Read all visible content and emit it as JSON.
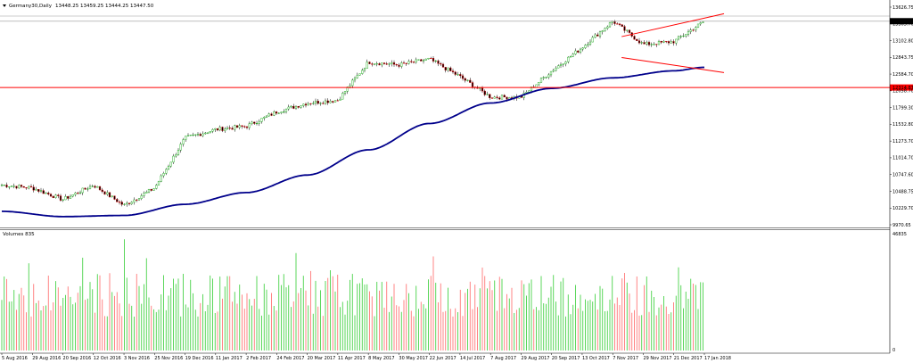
{
  "header": {
    "symbol_text": "Germany30,Daily",
    "ohlc_text": "13448.25 13459.25 13444.25 13447.50",
    "volume_label": "Volumes 835"
  },
  "chart_data": {
    "type": "candlestick",
    "price_axis": {
      "ticks": [
        "13626.75",
        "13365.70",
        "13102.80",
        "12843.75",
        "12584.70",
        "12058.70",
        "11799.30",
        "11532.80",
        "11273.70",
        "11014.70",
        "10747.60",
        "10488.75",
        "10229.70",
        "9970.65"
      ],
      "range": [
        9970.65,
        13626.75
      ]
    },
    "volume_axis": {
      "ticks": [
        "46835",
        "0"
      ],
      "range": [
        0,
        46835
      ]
    },
    "x_labels": [
      "5 Aug 2016",
      "29 Aug 2016",
      "20 Sep 2016",
      "12 Oct 2016",
      "3 Nov 2016",
      "25 Nov 2016",
      "19 Dec 2016",
      "11 Jan 2017",
      "2 Feb 2017",
      "24 Feb 2017",
      "20 Mar 2017",
      "11 Apr 2017",
      "8 May 2017",
      "30 May 2017",
      "22 Jun 2017",
      "14 Jul 2017",
      "7 Aug 2017",
      "29 Aug 2017",
      "20 Sep 2017",
      "13 Oct 2017",
      "7 Nov 2017",
      "29 Nov 2017",
      "21 Dec 2017",
      "17 Jan 2018"
    ],
    "price_anchors": [
      {
        "x": "5 Aug 2016",
        "y": 10650
      },
      {
        "x": "29 Aug 2016",
        "y": 10600
      },
      {
        "x": "20 Sep 2016",
        "y": 10400
      },
      {
        "x": "12 Oct 2016",
        "y": 10650
      },
      {
        "x": "3 Nov 2016",
        "y": 10300
      },
      {
        "x": "25 Nov 2016",
        "y": 10600
      },
      {
        "x": "19 Dec 2016",
        "y": 11450
      },
      {
        "x": "11 Jan 2017",
        "y": 11600
      },
      {
        "x": "2 Feb 2017",
        "y": 11650
      },
      {
        "x": "24 Feb 2017",
        "y": 11900
      },
      {
        "x": "20 Mar 2017",
        "y": 12050
      },
      {
        "x": "11 Apr 2017",
        "y": 12100
      },
      {
        "x": "8 May 2017",
        "y": 12750
      },
      {
        "x": "30 May 2017",
        "y": 12700
      },
      {
        "x": "22 Jun 2017",
        "y": 12800
      },
      {
        "x": "14 Jul 2017",
        "y": 12500
      },
      {
        "x": "7 Aug 2017",
        "y": 12150
      },
      {
        "x": "29 Aug 2017",
        "y": 12150
      },
      {
        "x": "20 Sep 2017",
        "y": 12600
      },
      {
        "x": "13 Oct 2017",
        "y": 13000
      },
      {
        "x": "7 Nov 2017",
        "y": 13450
      },
      {
        "x": "29 Nov 2017",
        "y": 13050
      },
      {
        "x": "21 Dec 2017",
        "y": 13100
      },
      {
        "x": "17 Jan 2018",
        "y": 13447.5
      }
    ],
    "moving_average_anchors": [
      {
        "x": "5 Aug 2016",
        "y": 10200
      },
      {
        "x": "20 Sep 2016",
        "y": 10110
      },
      {
        "x": "3 Nov 2016",
        "y": 10130
      },
      {
        "x": "19 Dec 2016",
        "y": 10320
      },
      {
        "x": "2 Feb 2017",
        "y": 10520
      },
      {
        "x": "20 Mar 2017",
        "y": 10820
      },
      {
        "x": "8 May 2017",
        "y": 11250
      },
      {
        "x": "22 Jun 2017",
        "y": 11700
      },
      {
        "x": "7 Aug 2017",
        "y": 12050
      },
      {
        "x": "20 Sep 2017",
        "y": 12300
      },
      {
        "x": "7 Nov 2017",
        "y": 12480
      },
      {
        "x": "21 Dec 2017",
        "y": 12600
      },
      {
        "x": "17 Jan 2018",
        "y": 12660
      }
    ],
    "horizontal_level": {
      "value": "12314.87",
      "color": "#ff0000"
    },
    "current_price": {
      "value": "13447.50"
    },
    "channel_upper": [
      {
        "x": "7 Nov 2017",
        "y": 13150
      },
      {
        "x": "17 Jan 2018",
        "y": 13500
      }
    ],
    "channel_lower": [
      {
        "x": "7 Nov 2017",
        "y": 12850
      },
      {
        "x": "17 Jan 2018",
        "y": 12620
      }
    ],
    "colors": {
      "up": "#00a000",
      "down": "#e00000",
      "ma": "#00008b",
      "volume_up": "#32cd32",
      "volume_down": "#ff6666",
      "channel": "#ff0000",
      "level": "#ff0000"
    },
    "grid": false,
    "legend": "none"
  }
}
